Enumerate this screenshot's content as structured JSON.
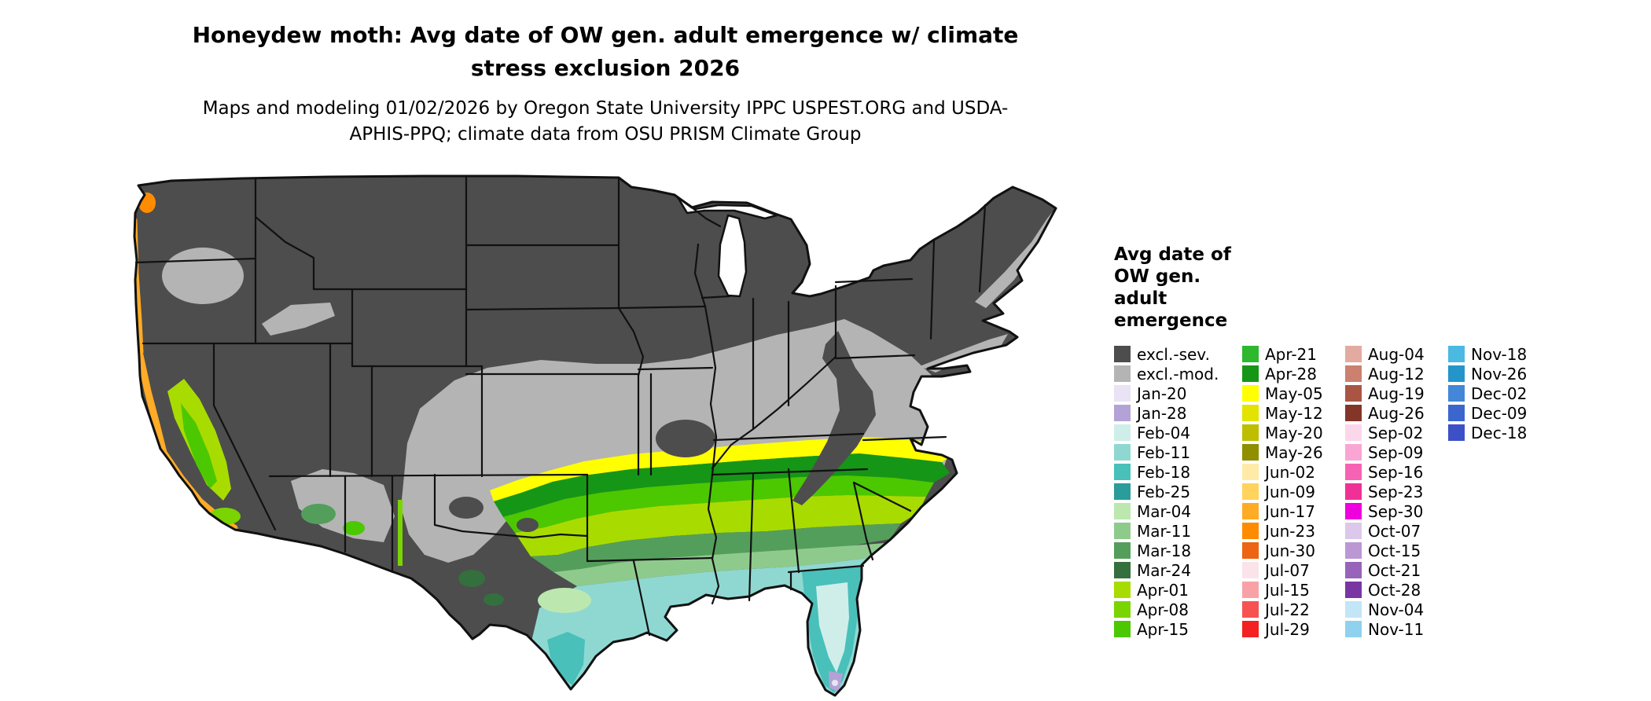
{
  "header": {
    "title": "Honeydew moth: Avg date of OW gen. adult emergence w/ climate stress exclusion 2026",
    "subtitle": "Maps and modeling 01/02/2026 by Oregon State University IPPC USPEST.ORG and USDA-APHIS-PPQ; climate data from OSU PRISM Climate Group"
  },
  "legend": {
    "title": "Avg date of OW gen. adult emergence",
    "columns": [
      15,
      15,
      15,
      5
    ],
    "entries": [
      {
        "label": "excl.-sev.",
        "color": "#4d4d4d"
      },
      {
        "label": "excl.-mod.",
        "color": "#b4b4b4"
      },
      {
        "label": "Jan-20",
        "color": "#e9e3f5"
      },
      {
        "label": "Jan-28",
        "color": "#b3a2d6"
      },
      {
        "label": "Feb-04",
        "color": "#cfeeea"
      },
      {
        "label": "Feb-11",
        "color": "#8fd8d2"
      },
      {
        "label": "Feb-18",
        "color": "#49c0ba"
      },
      {
        "label": "Feb-25",
        "color": "#2a9d9a"
      },
      {
        "label": "Mar-04",
        "color": "#bce8b0"
      },
      {
        "label": "Mar-11",
        "color": "#8fca8d"
      },
      {
        "label": "Mar-18",
        "color": "#549e5c"
      },
      {
        "label": "Mar-24",
        "color": "#346f3e"
      },
      {
        "label": "Apr-01",
        "color": "#a8dc00"
      },
      {
        "label": "Apr-08",
        "color": "#7ad400"
      },
      {
        "label": "Apr-15",
        "color": "#4cc800"
      },
      {
        "label": "Apr-21",
        "color": "#2db82d"
      },
      {
        "label": "Apr-28",
        "color": "#169616"
      },
      {
        "label": "May-05",
        "color": "#ffff00"
      },
      {
        "label": "May-12",
        "color": "#e3e300"
      },
      {
        "label": "May-20",
        "color": "#bebe00"
      },
      {
        "label": "May-26",
        "color": "#8f8f00"
      },
      {
        "label": "Jun-02",
        "color": "#ffeaa8"
      },
      {
        "label": "Jun-09",
        "color": "#ffd35e"
      },
      {
        "label": "Jun-17",
        "color": "#ffab26"
      },
      {
        "label": "Jun-23",
        "color": "#ff8c00"
      },
      {
        "label": "Jun-30",
        "color": "#ed6412"
      },
      {
        "label": "Jul-07",
        "color": "#fbe3ea"
      },
      {
        "label": "Jul-15",
        "color": "#f8a2a8"
      },
      {
        "label": "Jul-22",
        "color": "#f75252"
      },
      {
        "label": "Jul-29",
        "color": "#f32121"
      },
      {
        "label": "Aug-04",
        "color": "#e3aba0"
      },
      {
        "label": "Aug-12",
        "color": "#cc8070"
      },
      {
        "label": "Aug-19",
        "color": "#aa5544"
      },
      {
        "label": "Aug-26",
        "color": "#84352a"
      },
      {
        "label": "Sep-02",
        "color": "#fcd7e9"
      },
      {
        "label": "Sep-09",
        "color": "#f9a6d4"
      },
      {
        "label": "Sep-16",
        "color": "#f763b4"
      },
      {
        "label": "Sep-23",
        "color": "#f03096"
      },
      {
        "label": "Sep-30",
        "color": "#ef00df"
      },
      {
        "label": "Oct-07",
        "color": "#dcc8ea"
      },
      {
        "label": "Oct-15",
        "color": "#bb97d4"
      },
      {
        "label": "Oct-21",
        "color": "#9763bb"
      },
      {
        "label": "Oct-28",
        "color": "#7936a3"
      },
      {
        "label": "Nov-04",
        "color": "#c2e6f6"
      },
      {
        "label": "Nov-11",
        "color": "#8fd2ee"
      },
      {
        "label": "Nov-18",
        "color": "#4cb9e2"
      },
      {
        "label": "Nov-26",
        "color": "#2395cb"
      },
      {
        "label": "Dec-02",
        "color": "#4486d8"
      },
      {
        "label": "Dec-09",
        "color": "#3a66cd"
      },
      {
        "label": "Dec-18",
        "color": "#3c51c6"
      }
    ]
  }
}
